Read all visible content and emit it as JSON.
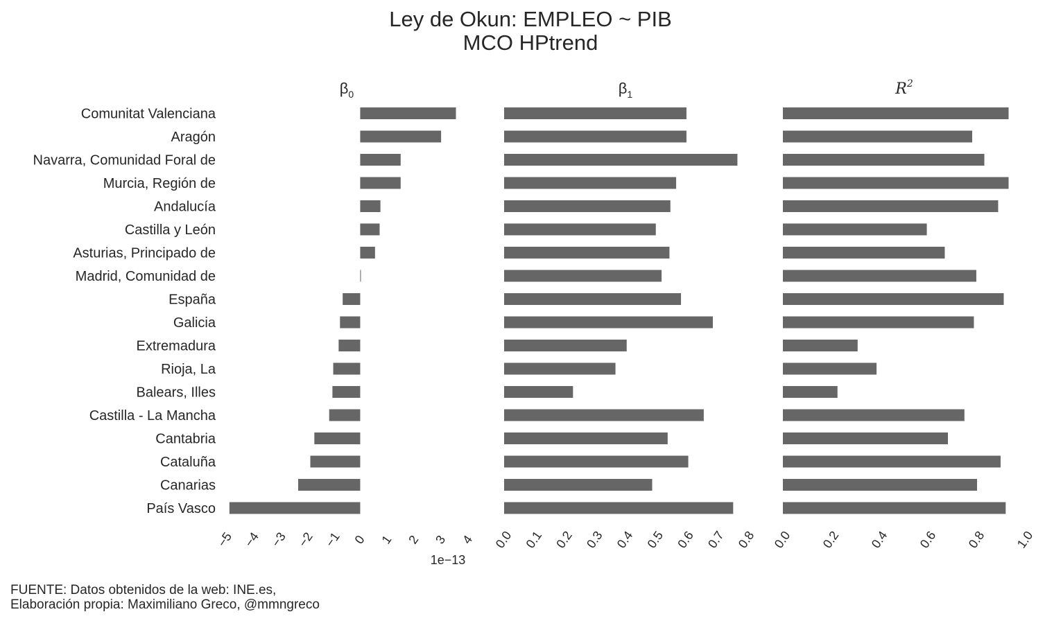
{
  "chart_data": {
    "type": "bar",
    "orientation": "horizontal",
    "title": "Ley de Okun: EMPLEO ~ PIB",
    "subtitle": "MCO HPtrend",
    "bar_color": "#666666",
    "grid": false,
    "categories": [
      "Comunitat Valenciana",
      "Aragón",
      "Navarra, Comunidad Foral de",
      "Murcia, Región de",
      "Andalucía",
      "Castilla y León",
      "Asturias, Principado de",
      "Madrid, Comunidad de",
      "España",
      "Galicia",
      "Extremadura",
      "Rioja, La",
      "Balears, Illes",
      "Castilla - La Mancha",
      "Cantabria",
      "Cataluña",
      "Canarias",
      "País Vasco"
    ],
    "panels": [
      {
        "title": "β",
        "title_sub": "0",
        "xlim": [
          -5,
          4
        ],
        "ticks": [
          -5,
          -4,
          -3,
          -2,
          -1,
          0,
          1,
          2,
          3,
          4
        ],
        "tick_labels": [
          "−5",
          "−4",
          "−3",
          "−2",
          "−1",
          "0",
          "1",
          "2",
          "3",
          "4"
        ],
        "offset_label": "1e−13",
        "values": [
          3.55,
          3.0,
          1.5,
          1.5,
          0.75,
          0.72,
          0.55,
          0.02,
          -0.65,
          -0.75,
          -0.8,
          -1.0,
          -1.03,
          -1.15,
          -1.7,
          -1.85,
          -2.3,
          -4.85
        ]
      },
      {
        "title": "β",
        "title_sub": "1",
        "xlim": [
          0,
          0.8
        ],
        "ticks": [
          0,
          0.1,
          0.2,
          0.3,
          0.4,
          0.5,
          0.6,
          0.7,
          0.8
        ],
        "tick_labels": [
          "0.0",
          "0.1",
          "0.2",
          "0.3",
          "0.4",
          "0.5",
          "0.6",
          "0.7",
          "0.8"
        ],
        "values": [
          0.601,
          0.601,
          0.769,
          0.567,
          0.548,
          0.5,
          0.545,
          0.519,
          0.583,
          0.688,
          0.404,
          0.367,
          0.227,
          0.658,
          0.539,
          0.607,
          0.488,
          0.755
        ]
      },
      {
        "title": "R",
        "title_sup": "2",
        "xlim": [
          0,
          1.0
        ],
        "ticks": [
          0,
          0.2,
          0.4,
          0.6,
          0.8,
          1.0
        ],
        "tick_labels": [
          "0.0",
          "0.2",
          "0.4",
          "0.6",
          "0.8",
          "1.0"
        ],
        "values": [
          0.93,
          0.78,
          0.83,
          0.93,
          0.887,
          0.593,
          0.667,
          0.797,
          0.91,
          0.787,
          0.308,
          0.386,
          0.225,
          0.748,
          0.68,
          0.897,
          0.8,
          0.918
        ]
      }
    ]
  },
  "footer": {
    "line1": "FUENTE: Datos obtenidos de la web: INE.es,",
    "line2": "Elaboración propia: Maximiliano Greco, @mmngreco"
  }
}
